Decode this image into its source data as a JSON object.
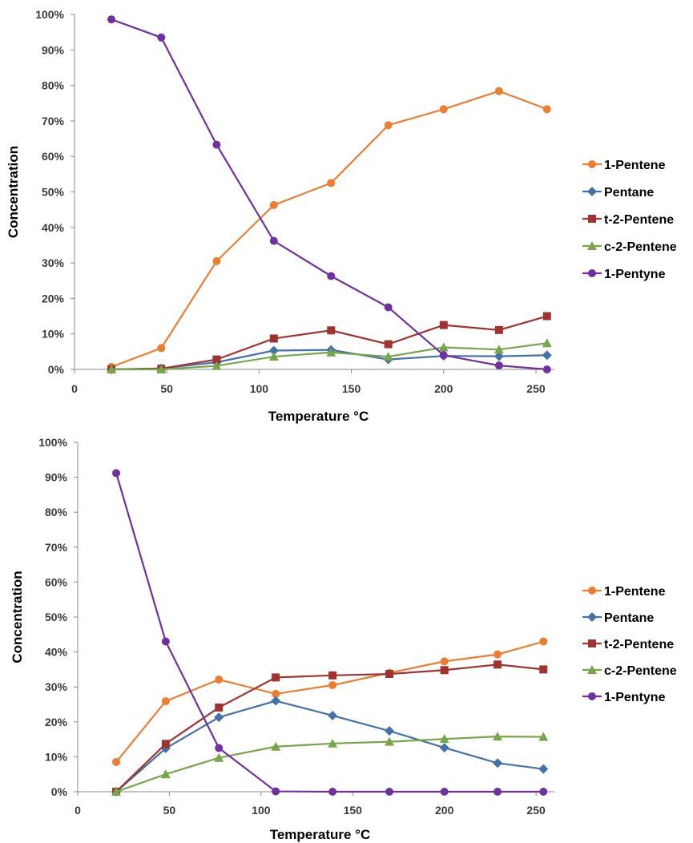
{
  "chart_data": [
    {
      "type": "line",
      "xlabel": "Temperature °C",
      "ylabel": "Concentration",
      "xlim": [
        0,
        260
      ],
      "ylim": [
        0,
        1
      ],
      "x_ticks": [
        "0",
        "50",
        "100",
        "150",
        "200",
        "250"
      ],
      "y_ticks": [
        "0%",
        "10%",
        "20%",
        "30%",
        "40%",
        "50%",
        "60%",
        "70%",
        "80%",
        "90%",
        "100%"
      ],
      "legend_position": "right",
      "grid": false,
      "series": [
        {
          "name": "1-Pentene",
          "color": "#ED7D31",
          "marker": "circle",
          "points": [
            [
              20,
              0.007
            ],
            [
              47,
              0.06
            ],
            [
              77,
              0.305
            ],
            [
              108,
              0.463
            ],
            [
              139,
              0.525
            ],
            [
              170,
              0.688
            ],
            [
              200,
              0.733
            ],
            [
              230,
              0.784
            ],
            [
              256,
              0.733
            ]
          ]
        },
        {
          "name": "Pentane",
          "color": "#4472A8",
          "marker": "diamond",
          "points": [
            [
              20,
              0.0
            ],
            [
              47,
              0.003
            ],
            [
              77,
              0.02
            ],
            [
              108,
              0.053
            ],
            [
              139,
              0.055
            ],
            [
              170,
              0.028
            ],
            [
              200,
              0.038
            ],
            [
              230,
              0.037
            ],
            [
              256,
              0.04
            ]
          ]
        },
        {
          "name": "t-2-Pentene",
          "color": "#A0322F",
          "marker": "square",
          "points": [
            [
              20,
              0.0
            ],
            [
              47,
              0.002
            ],
            [
              77,
              0.028
            ],
            [
              108,
              0.087
            ],
            [
              139,
              0.11
            ],
            [
              170,
              0.071
            ],
            [
              200,
              0.125
            ],
            [
              230,
              0.111
            ],
            [
              256,
              0.15
            ]
          ]
        },
        {
          "name": "c-2-Pentene",
          "color": "#77A64A",
          "marker": "triangle",
          "points": [
            [
              20,
              0.0
            ],
            [
              47,
              0.0
            ],
            [
              77,
              0.01
            ],
            [
              108,
              0.036
            ],
            [
              139,
              0.048
            ],
            [
              170,
              0.036
            ],
            [
              200,
              0.062
            ],
            [
              230,
              0.056
            ],
            [
              256,
              0.074
            ]
          ]
        },
        {
          "name": "1-Pentyne",
          "color": "#7030A0",
          "marker": "circle",
          "points": [
            [
              20,
              0.986
            ],
            [
              47,
              0.935
            ],
            [
              77,
              0.633
            ],
            [
              108,
              0.362
            ],
            [
              139,
              0.263
            ],
            [
              170,
              0.175
            ],
            [
              200,
              0.04
            ],
            [
              230,
              0.011
            ],
            [
              256,
              0.0
            ]
          ]
        }
      ]
    },
    {
      "type": "line",
      "xlabel": "Temperature °C",
      "ylabel": "Concentration",
      "xlim": [
        0,
        260
      ],
      "ylim": [
        0,
        1
      ],
      "x_ticks": [
        "0",
        "50",
        "100",
        "150",
        "200",
        "250"
      ],
      "y_ticks": [
        "0%",
        "10%",
        "20%",
        "30%",
        "40%",
        "50%",
        "60%",
        "70%",
        "80%",
        "90%",
        "100%"
      ],
      "legend_position": "right",
      "grid": false,
      "series": [
        {
          "name": "1-Pentene",
          "color": "#ED7D31",
          "marker": "circle",
          "points": [
            [
              21,
              0.085
            ],
            [
              48,
              0.259
            ],
            [
              77,
              0.321
            ],
            [
              108,
              0.28
            ],
            [
              139,
              0.305
            ],
            [
              170,
              0.34
            ],
            [
              200,
              0.373
            ],
            [
              229,
              0.393
            ],
            [
              254,
              0.43
            ]
          ]
        },
        {
          "name": "Pentane",
          "color": "#4472A8",
          "marker": "diamond",
          "points": [
            [
              21,
              0.0
            ],
            [
              48,
              0.124
            ],
            [
              77,
              0.213
            ],
            [
              108,
              0.26
            ],
            [
              139,
              0.218
            ],
            [
              170,
              0.174
            ],
            [
              200,
              0.126
            ],
            [
              229,
              0.082
            ],
            [
              254,
              0.065
            ]
          ]
        },
        {
          "name": "t-2-Pentene",
          "color": "#A0322F",
          "marker": "square",
          "points": [
            [
              21,
              0.0
            ],
            [
              48,
              0.137
            ],
            [
              77,
              0.241
            ],
            [
              108,
              0.327
            ],
            [
              139,
              0.333
            ],
            [
              170,
              0.337
            ],
            [
              200,
              0.348
            ],
            [
              229,
              0.364
            ],
            [
              254,
              0.35
            ]
          ]
        },
        {
          "name": "c-2-Pentene",
          "color": "#77A64A",
          "marker": "triangle",
          "points": [
            [
              21,
              0.0
            ],
            [
              48,
              0.05
            ],
            [
              77,
              0.097
            ],
            [
              108,
              0.129
            ],
            [
              139,
              0.138
            ],
            [
              170,
              0.143
            ],
            [
              200,
              0.151
            ],
            [
              229,
              0.158
            ],
            [
              254,
              0.157
            ]
          ]
        },
        {
          "name": "1-Pentyne",
          "color": "#7030A0",
          "marker": "circle",
          "points": [
            [
              21,
              0.912
            ],
            [
              48,
              0.43
            ],
            [
              77,
              0.125
            ],
            [
              108,
              0.001
            ],
            [
              139,
              0.0
            ],
            [
              170,
              0.0
            ],
            [
              200,
              0.0
            ],
            [
              229,
              0.0
            ],
            [
              254,
              0.0
            ]
          ]
        }
      ]
    }
  ]
}
